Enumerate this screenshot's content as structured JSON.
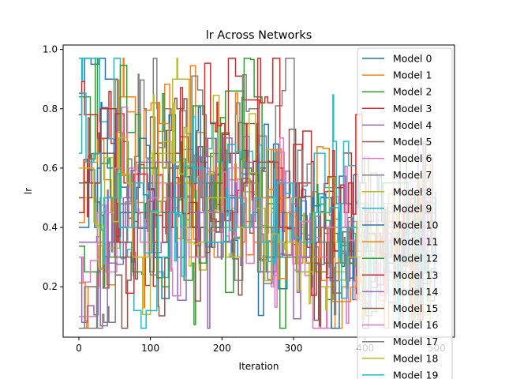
{
  "chart_data": {
    "type": "line",
    "title": "lr Across Networks",
    "xlabel": "Iteration",
    "ylabel": "lr",
    "xlim": [
      -22,
      525
    ],
    "ylim": [
      0.03,
      1.015
    ],
    "xticks": [
      0,
      100,
      200,
      300,
      400,
      500
    ],
    "yticks": [
      0.2,
      0.4,
      0.6,
      0.8,
      1.0
    ],
    "xtick_labels": [
      "0",
      "100",
      "200",
      "300",
      "400",
      "500"
    ],
    "ytick_labels": [
      "0.2",
      "0.4",
      "0.6",
      "0.8",
      "1.0"
    ],
    "grid": false,
    "legend_position": "upper-right",
    "style": "step",
    "n_points": 500,
    "note": "Each series is a noisy piecewise-constant (step) hyperparameter trace over ~500 iterations; values oscillate between ~0.06 and ~0.97. Values below are approximate segment levels (held value per segment of 25 iterations).",
    "segment_x": [
      0,
      25,
      50,
      75,
      100,
      125,
      150,
      175,
      200,
      225,
      250,
      275,
      300,
      325,
      350,
      375,
      400,
      425,
      450,
      475
    ],
    "series": [
      {
        "name": "Model 0",
        "color": "#1f77b4",
        "values": [
          0.95,
          0.9,
          0.35,
          0.55,
          0.45,
          0.62,
          0.4,
          0.58,
          0.3,
          0.66,
          0.5,
          0.4,
          0.55,
          0.35,
          0.48,
          0.3,
          0.42,
          0.28,
          0.36,
          0.25
        ]
      },
      {
        "name": "Model 1",
        "color": "#ff7f0e",
        "values": [
          0.2,
          0.3,
          0.84,
          0.55,
          0.82,
          0.6,
          0.72,
          0.45,
          0.65,
          0.5,
          0.38,
          0.45,
          0.3,
          0.52,
          0.2,
          0.35,
          0.28,
          0.4,
          0.33,
          0.45
        ]
      },
      {
        "name": "Model 2",
        "color": "#2ca02c",
        "values": [
          0.84,
          0.3,
          0.5,
          0.25,
          0.62,
          0.4,
          0.81,
          0.55,
          0.86,
          0.6,
          0.48,
          0.3,
          0.42,
          0.25,
          0.35,
          0.22,
          0.3,
          0.45,
          0.38,
          0.3
        ]
      },
      {
        "name": "Model 3",
        "color": "#d62728",
        "values": [
          0.78,
          0.7,
          0.55,
          0.42,
          0.35,
          0.5,
          0.62,
          0.7,
          0.91,
          0.83,
          0.6,
          0.45,
          0.55,
          0.4,
          0.52,
          0.3,
          0.45,
          0.35,
          0.28,
          0.4
        ]
      },
      {
        "name": "Model 4",
        "color": "#9467bd",
        "values": [
          0.3,
          0.5,
          0.4,
          0.62,
          0.35,
          0.55,
          0.45,
          0.7,
          0.5,
          0.42,
          0.36,
          0.55,
          0.28,
          0.4,
          0.32,
          0.22,
          0.38,
          0.3,
          0.45,
          0.25
        ]
      },
      {
        "name": "Model 5",
        "color": "#8c564b",
        "values": [
          0.55,
          0.35,
          0.25,
          0.45,
          0.6,
          0.8,
          0.5,
          0.42,
          0.65,
          0.75,
          0.35,
          0.5,
          0.44,
          0.3,
          0.38,
          0.28,
          0.35,
          0.42,
          0.3,
          0.48
        ]
      },
      {
        "name": "Model 6",
        "color": "#e377c2",
        "values": [
          0.1,
          0.25,
          0.4,
          0.3,
          0.55,
          0.45,
          0.35,
          0.6,
          0.4,
          0.52,
          0.3,
          0.45,
          0.38,
          0.25,
          0.32,
          0.42,
          0.28,
          0.35,
          0.4,
          0.3
        ]
      },
      {
        "name": "Model 7",
        "color": "#7f7f7f",
        "values": [
          0.06,
          0.35,
          0.48,
          0.8,
          0.8,
          0.6,
          0.78,
          0.5,
          0.66,
          0.8,
          0.55,
          0.81,
          0.4,
          0.3,
          0.28,
          0.38,
          0.32,
          0.45,
          0.35,
          0.5
        ]
      },
      {
        "name": "Model 8",
        "color": "#bcbd22",
        "values": [
          0.5,
          0.33,
          0.58,
          0.3,
          0.65,
          0.9,
          0.5,
          0.62,
          0.4,
          0.55,
          0.45,
          0.5,
          0.3,
          0.2,
          0.25,
          0.35,
          0.3,
          0.22,
          0.38,
          0.28
        ]
      },
      {
        "name": "Model 9",
        "color": "#17becf",
        "values": [
          0.97,
          0.94,
          0.3,
          0.12,
          0.25,
          0.4,
          0.55,
          0.62,
          0.68,
          0.45,
          0.5,
          0.35,
          0.3,
          0.65,
          0.69,
          0.48,
          0.3,
          0.38,
          0.25,
          0.42
        ]
      },
      {
        "name": "Model 10",
        "color": "#1f77b4",
        "values": [
          0.4,
          0.6,
          0.45,
          0.7,
          0.35,
          0.55,
          0.62,
          0.4,
          0.5,
          0.58,
          0.3,
          0.45,
          0.36,
          0.5,
          0.2,
          0.4,
          0.3,
          0.25,
          0.35,
          0.3
        ]
      },
      {
        "name": "Model 11",
        "color": "#ff7f0e",
        "values": [
          0.62,
          0.45,
          0.72,
          0.35,
          0.75,
          0.55,
          0.4,
          0.6,
          0.45,
          0.35,
          0.5,
          0.3,
          0.28,
          0.4,
          0.15,
          0.3,
          0.38,
          0.2,
          0.3,
          0.42
        ]
      },
      {
        "name": "Model 12",
        "color": "#2ca02c",
        "values": [
          0.25,
          0.5,
          0.72,
          0.6,
          0.2,
          0.45,
          0.28,
          0.55,
          0.35,
          0.84,
          0.4,
          0.3,
          0.25,
          0.45,
          0.35,
          0.4,
          0.3,
          0.55,
          0.28,
          0.36
        ]
      },
      {
        "name": "Model 13",
        "color": "#d62728",
        "values": [
          0.45,
          0.8,
          0.35,
          0.58,
          0.4,
          0.65,
          0.3,
          0.75,
          0.45,
          0.55,
          0.82,
          0.4,
          0.5,
          0.35,
          0.45,
          0.55,
          0.38,
          0.3,
          0.45,
          0.35
        ]
      },
      {
        "name": "Model 14",
        "color": "#9467bd",
        "values": [
          0.35,
          0.28,
          0.5,
          0.4,
          0.62,
          0.35,
          0.45,
          0.3,
          0.55,
          0.4,
          0.25,
          0.48,
          0.3,
          0.38,
          0.22,
          0.35,
          0.3,
          0.4,
          0.25,
          0.3
        ]
      },
      {
        "name": "Model 15",
        "color": "#8c564b",
        "values": [
          0.5,
          0.65,
          0.3,
          0.45,
          0.35,
          0.6,
          0.4,
          0.55,
          0.3,
          0.45,
          0.62,
          0.35,
          0.5,
          0.28,
          0.4,
          0.32,
          0.45,
          0.3,
          0.38,
          0.26
        ]
      },
      {
        "name": "Model 16",
        "color": "#e377c2",
        "values": [
          0.3,
          0.45,
          0.6,
          0.35,
          0.5,
          0.4,
          0.3,
          0.45,
          0.6,
          0.5,
          0.35,
          0.55,
          0.42,
          0.3,
          0.4,
          0.28,
          0.35,
          0.3,
          0.4,
          0.32
        ]
      },
      {
        "name": "Model 17",
        "color": "#7f7f7f",
        "values": [
          0.2,
          0.08,
          0.4,
          0.55,
          0.3,
          0.5,
          0.62,
          0.45,
          0.35,
          0.55,
          0.4,
          0.3,
          0.45,
          0.35,
          0.28,
          0.4,
          0.32,
          0.38,
          0.3,
          0.42
        ]
      },
      {
        "name": "Model 18",
        "color": "#bcbd22",
        "values": [
          0.6,
          0.4,
          0.55,
          0.3,
          0.45,
          0.58,
          0.35,
          0.5,
          0.3,
          0.4,
          0.22,
          0.35,
          0.25,
          0.45,
          0.35,
          0.3,
          0.4,
          0.28,
          0.32,
          0.25
        ]
      },
      {
        "name": "Model 19",
        "color": "#17becf",
        "values": [
          0.65,
          0.5,
          0.4,
          0.55,
          0.3,
          0.45,
          0.6,
          0.35,
          0.5,
          0.4,
          0.3,
          0.55,
          0.35,
          0.45,
          0.3,
          0.4,
          0.35,
          0.3,
          0.38,
          0.32
        ]
      }
    ]
  }
}
